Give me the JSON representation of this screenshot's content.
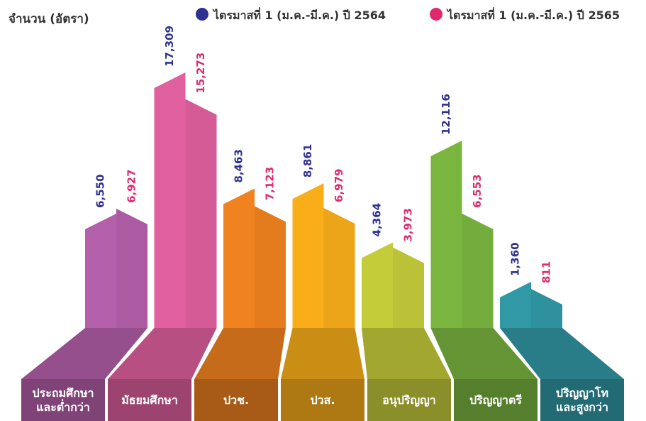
{
  "chart_data": {
    "type": "step-bar",
    "y_label": "จำนวน (อัตรา)",
    "categories": [
      "ประถมศึกษา\nและต่ำกว่า",
      "มัธยมศึกษา",
      "ปวช.",
      "ปวส.",
      "อนุปริญญา",
      "ปริญญาตรี",
      "ปริญญาโท\nและสูงกว่า"
    ],
    "category_colors": [
      "#b560ab",
      "#e0609f",
      "#f0821f",
      "#f8ad19",
      "#c5cc3a",
      "#7ab540",
      "#3199a6"
    ],
    "series": [
      {
        "name": "ไตรมาสที่ 1 (ม.ค.-มี.ค.) ปี 2564",
        "color": "#2e3192",
        "values": [
          6550,
          17309,
          8463,
          8861,
          4364,
          12116,
          1360
        ],
        "value_labels": [
          "6,550",
          "17,309",
          "8,463",
          "8,861",
          "4,364",
          "12,116",
          "1,360"
        ]
      },
      {
        "name": "ไตรมาสที่ 1 (ม.ค.-มี.ค.) ปี 2565",
        "color": "#e0286f",
        "values": [
          6927,
          15273,
          7123,
          6979,
          3973,
          6553,
          811
        ],
        "value_labels": [
          "6,927",
          "15,273",
          "7,123",
          "6,979",
          "3,973",
          "6,553",
          "811"
        ]
      }
    ]
  }
}
